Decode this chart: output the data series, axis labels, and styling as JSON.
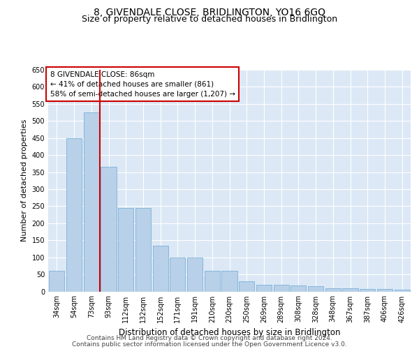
{
  "title": "8, GIVENDALE CLOSE, BRIDLINGTON, YO16 6GQ",
  "subtitle": "Size of property relative to detached houses in Bridlington",
  "xlabel": "Distribution of detached houses by size in Bridlington",
  "ylabel": "Number of detached properties",
  "categories": [
    "34sqm",
    "54sqm",
    "73sqm",
    "93sqm",
    "112sqm",
    "132sqm",
    "152sqm",
    "171sqm",
    "191sqm",
    "210sqm",
    "230sqm",
    "250sqm",
    "269sqm",
    "289sqm",
    "308sqm",
    "328sqm",
    "348sqm",
    "367sqm",
    "387sqm",
    "406sqm",
    "426sqm"
  ],
  "values": [
    60,
    450,
    525,
    365,
    245,
    245,
    135,
    100,
    100,
    60,
    60,
    30,
    20,
    20,
    18,
    15,
    10,
    10,
    8,
    8,
    5
  ],
  "bar_color": "#b8d0e8",
  "bar_edge_color": "#6aaad4",
  "background_color": "#dce8f5",
  "grid_color": "#ffffff",
  "vline_color": "#cc0000",
  "vline_index": 2.5,
  "annotation_text": "8 GIVENDALE CLOSE: 86sqm\n← 41% of detached houses are smaller (861)\n58% of semi-detached houses are larger (1,207) →",
  "annotation_box_color": "#ffffff",
  "annotation_box_edge": "#cc0000",
  "ylim": [
    0,
    650
  ],
  "yticks": [
    0,
    50,
    100,
    150,
    200,
    250,
    300,
    350,
    400,
    450,
    500,
    550,
    600,
    650
  ],
  "footer_line1": "Contains HM Land Registry data © Crown copyright and database right 2024.",
  "footer_line2": "Contains public sector information licensed under the Open Government Licence v3.0.",
  "title_fontsize": 10,
  "subtitle_fontsize": 9,
  "xlabel_fontsize": 8.5,
  "ylabel_fontsize": 8,
  "tick_fontsize": 7,
  "annotation_fontsize": 7.5,
  "footer_fontsize": 6.5
}
